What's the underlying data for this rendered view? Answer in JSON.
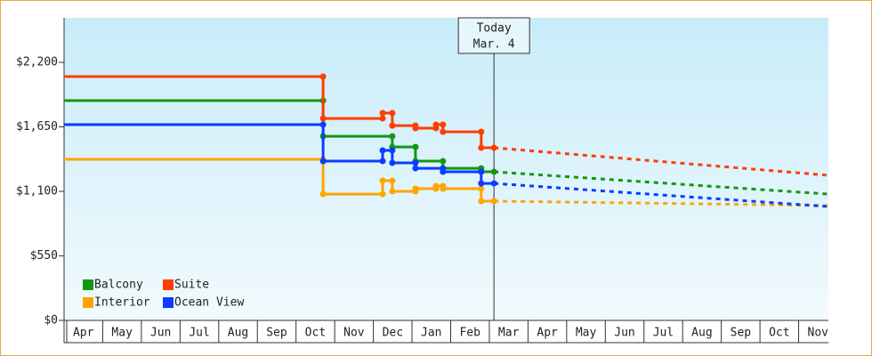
{
  "chart_data": {
    "type": "step-line",
    "ylim": [
      0,
      2580
    ],
    "yticks": [
      {
        "value": 0,
        "label": "$0"
      },
      {
        "value": 550,
        "label": "$550"
      },
      {
        "value": 1100,
        "label": "$1,100"
      },
      {
        "value": 1650,
        "label": "$1,650"
      },
      {
        "value": 2200,
        "label": "$2,200"
      }
    ],
    "xlim": [
      0,
      19.77
    ],
    "xticks": [
      {
        "value": 0.5,
        "label": "Apr"
      },
      {
        "value": 1.5,
        "label": "May"
      },
      {
        "value": 2.5,
        "label": "Jun"
      },
      {
        "value": 3.5,
        "label": "Jul"
      },
      {
        "value": 4.5,
        "label": "Aug"
      },
      {
        "value": 5.5,
        "label": "Sep"
      },
      {
        "value": 6.5,
        "label": "Oct"
      },
      {
        "value": 7.5,
        "label": "Nov"
      },
      {
        "value": 8.5,
        "label": "Dec"
      },
      {
        "value": 9.5,
        "label": "Jan"
      },
      {
        "value": 10.5,
        "label": "Feb"
      },
      {
        "value": 11.5,
        "label": "Mar"
      },
      {
        "value": 12.5,
        "label": "Apr"
      },
      {
        "value": 13.5,
        "label": "May"
      },
      {
        "value": 14.5,
        "label": "Jun"
      },
      {
        "value": 15.5,
        "label": "Jul"
      },
      {
        "value": 16.5,
        "label": "Aug"
      },
      {
        "value": 17.5,
        "label": "Sep"
      },
      {
        "value": 18.5,
        "label": "Oct"
      },
      {
        "value": 19.5,
        "label": "Nov"
      }
    ],
    "today": {
      "x": 11.12,
      "label": "Today",
      "date": "Mar. 4"
    },
    "forecast_x": [
      11.12,
      19.77
    ],
    "legend": "lower left",
    "series": [
      {
        "name": "Balcony",
        "color": "#119911",
        "x": [
          0,
          6.7,
          6.7,
          8.49,
          8.49,
          9.09,
          9.09,
          9.8,
          9.8,
          10.79,
          10.79,
          11.12
        ],
        "values": [
          1874,
          1874,
          1570,
          1570,
          1479,
          1479,
          1358,
          1358,
          1297,
          1297,
          1267,
          1267
        ],
        "forecast_values": [
          1267,
          1077
        ]
      },
      {
        "name": "Suite",
        "color": "#ff3d00",
        "x": [
          0,
          6.7,
          6.7,
          8.24,
          8.24,
          8.49,
          8.49,
          9.09,
          9.09,
          9.62,
          9.62,
          9.8,
          9.8,
          10.79,
          10.79,
          11.12
        ],
        "values": [
          2079,
          2079,
          1722,
          1722,
          1768,
          1768,
          1661,
          1661,
          1639,
          1639,
          1669,
          1669,
          1608,
          1608,
          1472,
          1472
        ],
        "forecast_values": [
          1472,
          1237
        ]
      },
      {
        "name": "Interior",
        "color": "#ffa500",
        "x": [
          0,
          6.7,
          6.7,
          8.24,
          8.24,
          8.49,
          8.49,
          9.09,
          9.09,
          9.62,
          9.62,
          9.8,
          9.8,
          10.79,
          10.79,
          11.12
        ],
        "values": [
          1373,
          1373,
          1077,
          1077,
          1191,
          1191,
          1100,
          1100,
          1123,
          1123,
          1146,
          1146,
          1123,
          1123,
          1017,
          1017
        ],
        "forecast_values": [
          1017,
          979
        ]
      },
      {
        "name": "Ocean View",
        "color": "#0a3cff",
        "x": [
          0,
          6.7,
          6.7,
          8.24,
          8.24,
          8.49,
          8.49,
          9.09,
          9.09,
          9.8,
          9.8,
          10.79,
          10.79,
          11.12
        ],
        "values": [
          1669,
          1669,
          1358,
          1358,
          1449,
          1449,
          1343,
          1343,
          1297,
          1297,
          1267,
          1267,
          1168,
          1168
        ],
        "forecast_values": [
          1168,
          971
        ]
      }
    ]
  }
}
